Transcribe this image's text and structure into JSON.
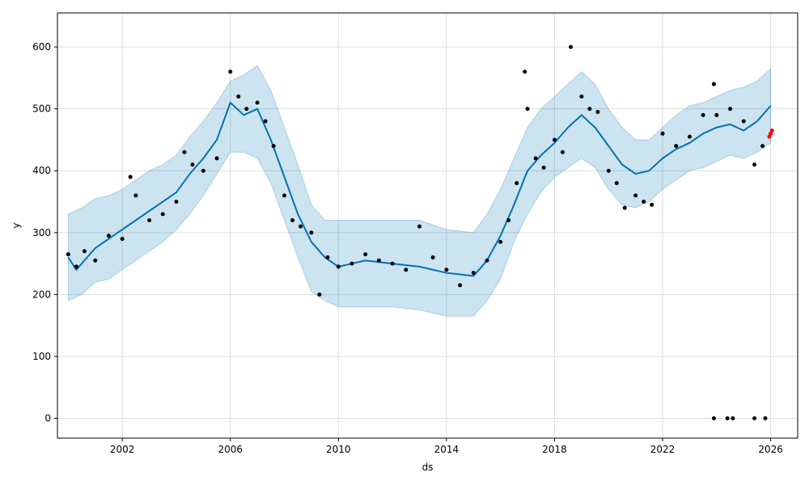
{
  "chart_data": {
    "type": "line",
    "title": "",
    "xlabel": "ds",
    "ylabel": "y",
    "xlim": [
      1999.6,
      2027.0
    ],
    "ylim": [
      -32,
      655
    ],
    "x_ticks": [
      "2002",
      "2006",
      "2010",
      "2014",
      "2018",
      "2022",
      "2026"
    ],
    "x_tick_values": [
      2002,
      2006,
      2010,
      2014,
      2018,
      2022,
      2026
    ],
    "y_ticks": [
      "0",
      "100",
      "200",
      "300",
      "400",
      "500",
      "600"
    ],
    "y_tick_values": [
      0,
      100,
      200,
      300,
      400,
      500,
      600
    ],
    "grid": true,
    "legend": "none",
    "colors": {
      "forecast_line": "#0072B2",
      "uncertainty_band": "#0072B2",
      "observed_points": "#000000",
      "outlier_points": "#ff0000",
      "grid": "#dddddd"
    },
    "series": [
      {
        "kind": "band",
        "x": [
          2000.0,
          2000.5,
          2001.0,
          2001.5,
          2002.0,
          2002.5,
          2003.0,
          2003.5,
          2004.0,
          2004.5,
          2005.0,
          2005.5,
          2006.0,
          2006.5,
          2007.0,
          2007.5,
          2008.0,
          2008.5,
          2009.0,
          2009.5,
          2010.0,
          2011.0,
          2012.0,
          2013.0,
          2014.0,
          2015.0,
          2015.5,
          2016.0,
          2016.5,
          2017.0,
          2017.5,
          2018.0,
          2018.5,
          2019.0,
          2019.5,
          2020.0,
          2020.5,
          2021.0,
          2021.5,
          2022.0,
          2022.5,
          2023.0,
          2023.5,
          2024.0,
          2024.5,
          2025.0,
          2025.5,
          2026.0
        ],
        "upper": [
          330,
          340,
          355,
          360,
          370,
          385,
          400,
          410,
          425,
          455,
          480,
          510,
          545,
          555,
          570,
          530,
          470,
          410,
          345,
          320,
          320,
          320,
          320,
          320,
          305,
          300,
          330,
          370,
          420,
          470,
          500,
          520,
          540,
          560,
          540,
          500,
          470,
          450,
          450,
          470,
          490,
          505,
          510,
          520,
          530,
          535,
          545,
          565
        ],
        "lower": [
          190,
          200,
          220,
          225,
          240,
          255,
          270,
          285,
          305,
          330,
          360,
          395,
          430,
          430,
          420,
          380,
          320,
          260,
          205,
          190,
          180,
          180,
          180,
          175,
          165,
          165,
          190,
          225,
          285,
          330,
          365,
          390,
          405,
          420,
          405,
          370,
          345,
          340,
          350,
          370,
          385,
          400,
          405,
          415,
          425,
          420,
          430,
          445
        ]
      },
      {
        "kind": "line",
        "name": "yhat",
        "x": [
          2000.0,
          2000.3,
          2000.6,
          2001.0,
          2001.5,
          2002.0,
          2002.5,
          2003.0,
          2003.5,
          2004.0,
          2004.5,
          2005.0,
          2005.5,
          2006.0,
          2006.5,
          2007.0,
          2007.5,
          2008.0,
          2008.5,
          2009.0,
          2009.5,
          2010.0,
          2011.0,
          2012.0,
          2013.0,
          2014.0,
          2015.0,
          2015.5,
          2016.0,
          2016.5,
          2017.0,
          2017.5,
          2018.0,
          2018.5,
          2019.0,
          2019.5,
          2020.0,
          2020.5,
          2021.0,
          2021.5,
          2022.0,
          2022.5,
          2023.0,
          2023.5,
          2024.0,
          2024.5,
          2025.0,
          2025.5,
          2026.0
        ],
        "y": [
          260,
          240,
          255,
          275,
          290,
          305,
          320,
          335,
          350,
          365,
          395,
          420,
          450,
          510,
          490,
          500,
          450,
          390,
          330,
          285,
          260,
          245,
          255,
          250,
          245,
          235,
          230,
          255,
          295,
          345,
          400,
          425,
          445,
          470,
          490,
          470,
          440,
          410,
          395,
          400,
          420,
          435,
          445,
          460,
          470,
          475,
          465,
          480,
          505
        ]
      },
      {
        "kind": "points",
        "name": "observed",
        "x": [
          2000.0,
          2000.3,
          2000.6,
          2001.0,
          2001.5,
          2002.0,
          2002.3,
          2002.5,
          2003.0,
          2003.5,
          2004.0,
          2004.3,
          2004.6,
          2005.0,
          2005.5,
          2006.0,
          2006.3,
          2006.6,
          2007.0,
          2007.3,
          2007.6,
          2008.0,
          2008.3,
          2008.6,
          2009.0,
          2009.3,
          2009.6,
          2010.0,
          2010.5,
          2011.0,
          2011.5,
          2012.0,
          2012.5,
          2013.0,
          2013.5,
          2014.0,
          2014.5,
          2015.0,
          2015.5,
          2016.0,
          2016.3,
          2016.6,
          2016.9,
          2017.0,
          2017.3,
          2017.6,
          2018.0,
          2018.3,
          2018.6,
          2019.0,
          2019.3,
          2019.6,
          2020.0,
          2020.3,
          2020.6,
          2021.0,
          2021.3,
          2021.6,
          2022.0,
          2022.5,
          2023.0,
          2023.5,
          2023.9,
          2024.0,
          2024.5,
          2025.0,
          2025.4,
          2025.7
        ],
        "y": [
          265,
          245,
          270,
          255,
          295,
          290,
          390,
          360,
          320,
          330,
          350,
          430,
          410,
          400,
          420,
          560,
          520,
          500,
          510,
          480,
          440,
          360,
          320,
          310,
          300,
          200,
          260,
          245,
          250,
          265,
          255,
          250,
          240,
          310,
          260,
          240,
          215,
          235,
          255,
          285,
          320,
          380,
          560,
          500,
          420,
          405,
          450,
          430,
          600,
          520,
          500,
          495,
          400,
          380,
          340,
          360,
          350,
          345,
          460,
          440,
          455,
          490,
          540,
          490,
          500,
          480,
          410,
          440
        ]
      },
      {
        "kind": "points",
        "name": "zeros",
        "x": [
          2023.9,
          2024.4,
          2024.6,
          2025.4,
          2025.8
        ],
        "y": [
          0,
          0,
          0,
          0,
          0
        ]
      },
      {
        "kind": "points",
        "name": "recent",
        "x": [
          2025.95,
          2026.0,
          2026.05
        ],
        "y": [
          455,
          460,
          465
        ]
      }
    ]
  }
}
